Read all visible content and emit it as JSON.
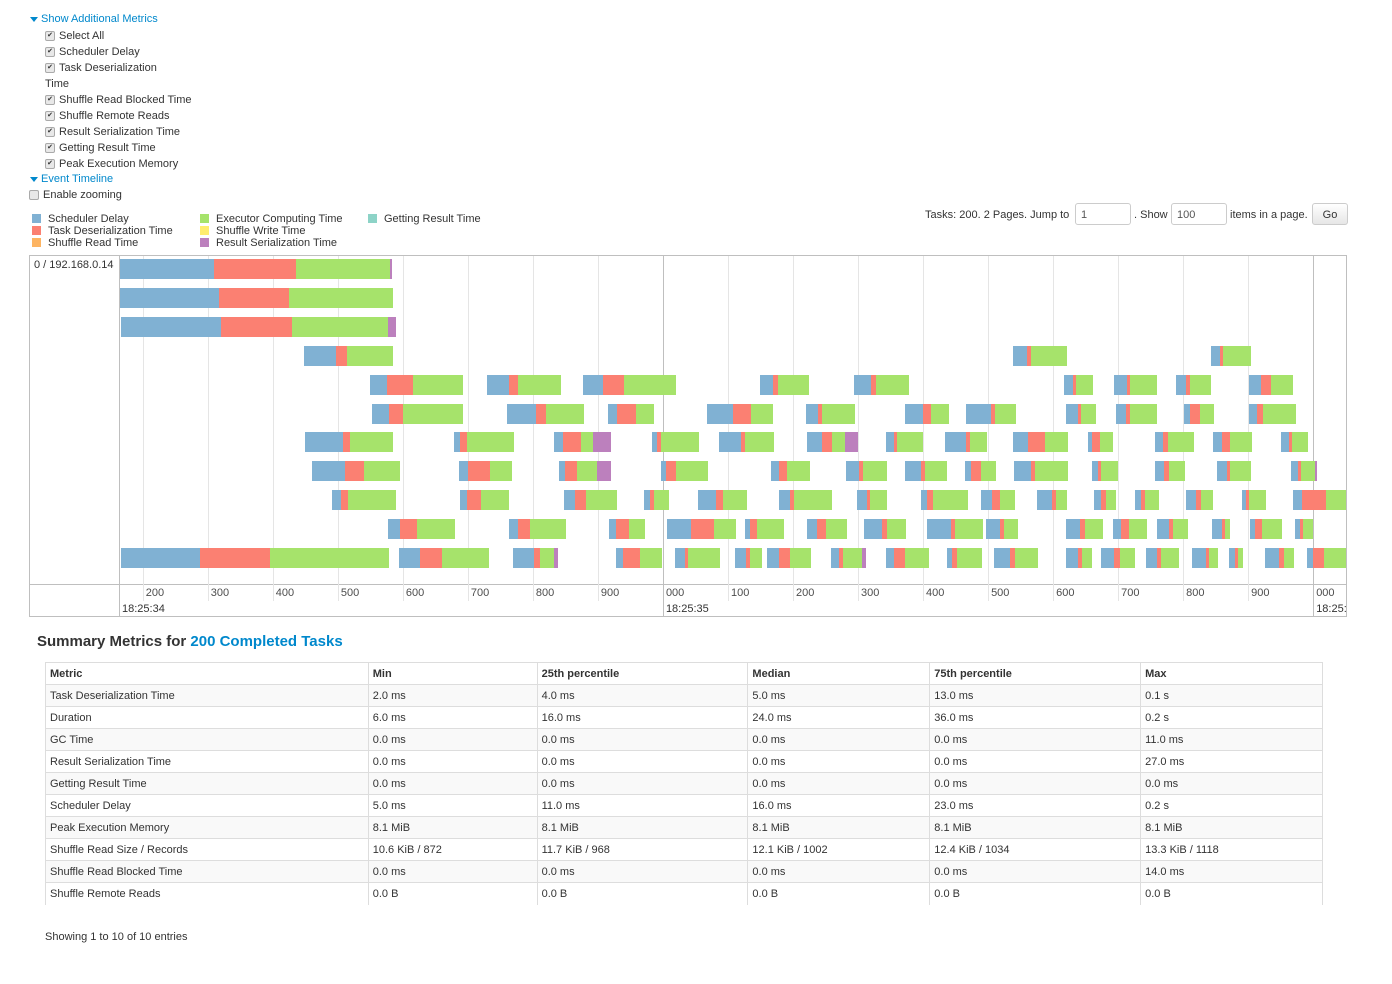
{
  "additional_metrics": {
    "toggle": "Show Additional Metrics",
    "items": [
      {
        "label": "Select All",
        "checked": true
      },
      {
        "label": "Scheduler Delay",
        "checked": true
      },
      {
        "label": "Task Deserialization Time",
        "checked": true
      },
      {
        "label": "Shuffle Read Blocked Time",
        "checked": true
      },
      {
        "label": "Shuffle Remote Reads",
        "checked": true
      },
      {
        "label": "Result Serialization Time",
        "checked": true
      },
      {
        "label": "Getting Result Time",
        "checked": true
      },
      {
        "label": "Peak Execution Memory",
        "checked": true
      }
    ]
  },
  "event_timeline": {
    "toggle": "Event Timeline",
    "zoom_label": "Enable zooming",
    "zoom_checked": false
  },
  "legend": [
    {
      "label": "Scheduler Delay",
      "color": "#80b1d3"
    },
    {
      "label": "Task Deserialization Time",
      "color": "#fb8072"
    },
    {
      "label": "Shuffle Read Time",
      "color": "#fdb462"
    },
    {
      "label": "Executor Computing Time",
      "color": "#a6e36b"
    },
    {
      "label": "Shuffle Write Time",
      "color": "#ffed6f"
    },
    {
      "label": "Result Serialization Time",
      "color": "#bc80bd"
    },
    {
      "label": "Getting Result Time",
      "color": "#8dd3c7"
    }
  ],
  "pagination": {
    "prefix": "Tasks: 200. 2 Pages. Jump to",
    "page": "1",
    "show": ". Show",
    "page_size": "100",
    "suffix": "items in a page.",
    "go": "Go"
  },
  "timeline": {
    "executor": "0 / 192.168.0.14",
    "range_ms": [
      165,
      2052
    ],
    "ticks": [
      {
        "ms": 200,
        "label": "200"
      },
      {
        "ms": 300,
        "label": "300"
      },
      {
        "ms": 400,
        "label": "400"
      },
      {
        "ms": 500,
        "label": "500"
      },
      {
        "ms": 600,
        "label": "600"
      },
      {
        "ms": 700,
        "label": "700"
      },
      {
        "ms": 800,
        "label": "800"
      },
      {
        "ms": 900,
        "label": "900"
      },
      {
        "ms": 1000,
        "label": "000",
        "major": "18:25:35"
      },
      {
        "ms": 1100,
        "label": "100"
      },
      {
        "ms": 1200,
        "label": "200"
      },
      {
        "ms": 1300,
        "label": "300"
      },
      {
        "ms": 1400,
        "label": "400"
      },
      {
        "ms": 1500,
        "label": "500"
      },
      {
        "ms": 1600,
        "label": "600"
      },
      {
        "ms": 1700,
        "label": "700"
      },
      {
        "ms": 1800,
        "label": "800"
      },
      {
        "ms": 1900,
        "label": "900"
      },
      {
        "ms": 2000,
        "label": "000",
        "major": "18:25:"
      }
    ],
    "start_label": "18:25:34",
    "segment_colors": [
      "#80b1d3",
      "#fb8072",
      "#a6e36b",
      "#bc80bd"
    ],
    "rows": [
      [
        [
          165,
          309,
          435,
          580,
          583
        ]
      ],
      [
        [
          165,
          317,
          425,
          585
        ]
      ],
      [
        [
          166,
          320,
          429,
          577,
          589
        ]
      ],
      [
        [
          448,
          497,
          514,
          585
        ],
        [
          1538,
          1560,
          1566,
          1622
        ],
        [
          1843,
          1857,
          1862,
          1905
        ]
      ],
      [
        [
          549,
          575,
          615,
          692
        ],
        [
          729,
          763,
          777,
          843
        ],
        [
          877,
          908,
          940,
          1020
        ],
        [
          1149,
          1169,
          1177,
          1225
        ],
        [
          1294,
          1320,
          1328,
          1378
        ],
        [
          1617,
          1631,
          1635,
          1662
        ],
        [
          1694,
          1714,
          1718,
          1760
        ],
        [
          1789,
          1805,
          1811,
          1843
        ],
        [
          1901,
          1920,
          1935,
          1969
        ]
      ],
      [
        [
          552,
          578,
          600,
          692
        ],
        [
          760,
          805,
          820,
          878
        ],
        [
          915,
          929,
          958,
          986
        ],
        [
          1068,
          1108,
          1135,
          1169
        ],
        [
          1220,
          1238,
          1245,
          1295
        ],
        [
          1372,
          1400,
          1412,
          1440
        ],
        [
          1466,
          1504,
          1510,
          1543
        ],
        [
          1620,
          1638,
          1643,
          1666
        ],
        [
          1697,
          1712,
          1718,
          1760
        ],
        [
          1801,
          1810,
          1826,
          1847
        ],
        [
          1901,
          1913,
          1923,
          1974
        ]
      ],
      [
        [
          449,
          508,
          518,
          585
        ],
        [
          678,
          688,
          698,
          771
        ],
        [
          832,
          846,
          874,
          892,
          920
        ],
        [
          983,
          991,
          997,
          1055
        ],
        [
          1086,
          1120,
          1126,
          1171
        ],
        [
          1222,
          1245,
          1260,
          1280,
          1300
        ],
        [
          1343,
          1355,
          1360,
          1400
        ],
        [
          1434,
          1466,
          1472,
          1498
        ],
        [
          1538,
          1562,
          1588,
          1623
        ],
        [
          1654,
          1660,
          1672,
          1692
        ],
        [
          1757,
          1769,
          1777,
          1817
        ],
        [
          1846,
          1860,
          1872,
          1906
        ],
        [
          1951,
          1963,
          1968,
          1992
        ]
      ],
      [
        [
          460,
          511,
          540,
          595
        ],
        [
          686,
          700,
          734,
          768
        ],
        [
          840,
          849,
          868,
          898,
          920
        ],
        [
          997,
          1005,
          1020,
          1069
        ],
        [
          1166,
          1178,
          1191,
          1226
        ],
        [
          1281,
          1301,
          1308,
          1345
        ],
        [
          1372,
          1397,
          1403,
          1437
        ],
        [
          1465,
          1474,
          1489,
          1512
        ],
        [
          1540,
          1566,
          1572,
          1623
        ],
        [
          1660,
          1669,
          1674,
          1700
        ],
        [
          1757,
          1771,
          1778,
          1803
        ],
        [
          1852,
          1868,
          1872,
          1905
        ],
        [
          1966,
          1977,
          1982,
          2003,
          2006
        ]
      ],
      [
        [
          491,
          505,
          515,
          589
        ],
        [
          688,
          698,
          720,
          763
        ],
        [
          848,
          865,
          882,
          929
        ],
        [
          971,
          980,
          986,
          1009
        ],
        [
          1054,
          1082,
          1092,
          1129
        ],
        [
          1178,
          1195,
          1202,
          1260
        ],
        [
          1298,
          1314,
          1318,
          1345
        ],
        [
          1397,
          1406,
          1415,
          1469
        ],
        [
          1489,
          1506,
          1518,
          1541
        ],
        [
          1575,
          1598,
          1604,
          1622
        ],
        [
          1663,
          1674,
          1682,
          1697
        ],
        [
          1726,
          1735,
          1741,
          1763
        ],
        [
          1805,
          1820,
          1828,
          1846
        ],
        [
          1891,
          1897,
          1901,
          1928
        ],
        [
          1969,
          1983,
          2020,
          2052
        ]
      ],
      [
        [
          577,
          595,
          622,
          680
        ],
        [
          763,
          777,
          795,
          851
        ],
        [
          917,
          928,
          948,
          972
        ],
        [
          1006,
          1043,
          1078,
          1112
        ],
        [
          1126,
          1134,
          1145,
          1186
        ],
        [
          1222,
          1237,
          1251,
          1283
        ],
        [
          1309,
          1337,
          1345,
          1374
        ],
        [
          1406,
          1443,
          1449,
          1492
        ],
        [
          1497,
          1518,
          1524,
          1546
        ],
        [
          1620,
          1641,
          1649,
          1677
        ],
        [
          1692,
          1705,
          1717,
          1745
        ],
        [
          1760,
          1778,
          1785,
          1808
        ],
        [
          1845,
          1860,
          1865,
          1872
        ],
        [
          1903,
          1911,
          1922,
          1952
        ],
        [
          1972,
          1980,
          1985,
          1999
        ]
      ],
      [
        [
          166,
          288,
          395,
          578
        ],
        [
          594,
          626,
          660,
          732
        ],
        [
          769,
          802,
          811,
          832,
          838
        ],
        [
          928,
          938,
          965,
          998
        ],
        [
          1018,
          1034,
          1038,
          1088
        ],
        [
          1111,
          1128,
          1134,
          1152
        ],
        [
          1160,
          1178,
          1195,
          1228
        ],
        [
          1258,
          1271,
          1277,
          1306,
          1312
        ],
        [
          1343,
          1355,
          1372,
          1409
        ],
        [
          1437,
          1445,
          1452,
          1491
        ],
        [
          1509,
          1534,
          1542,
          1577
        ],
        [
          1620,
          1638,
          1644,
          1660
        ],
        [
          1674,
          1694,
          1703,
          1726
        ],
        [
          1743,
          1760,
          1766,
          1794
        ],
        [
          1814,
          1835,
          1840,
          1854
        ],
        [
          1871,
          1880,
          1885,
          1892
        ],
        [
          1926,
          1948,
          1955,
          1971
        ],
        [
          1991,
          2000,
          2017,
          2052
        ]
      ]
    ]
  },
  "summary": {
    "title_prefix": "Summary Metrics for",
    "title_link": "200 Completed Tasks",
    "columns": [
      "Metric",
      "Min",
      "25th percentile",
      "Median",
      "75th percentile",
      "Max"
    ],
    "rows": [
      [
        "Task Deserialization Time",
        "2.0 ms",
        "4.0 ms",
        "5.0 ms",
        "13.0 ms",
        "0.1 s"
      ],
      [
        "Duration",
        "6.0 ms",
        "16.0 ms",
        "24.0 ms",
        "36.0 ms",
        "0.2 s"
      ],
      [
        "GC Time",
        "0.0 ms",
        "0.0 ms",
        "0.0 ms",
        "0.0 ms",
        "11.0 ms"
      ],
      [
        "Result Serialization Time",
        "0.0 ms",
        "0.0 ms",
        "0.0 ms",
        "0.0 ms",
        "27.0 ms"
      ],
      [
        "Getting Result Time",
        "0.0 ms",
        "0.0 ms",
        "0.0 ms",
        "0.0 ms",
        "0.0 ms"
      ],
      [
        "Scheduler Delay",
        "5.0 ms",
        "11.0 ms",
        "16.0 ms",
        "23.0 ms",
        "0.2 s"
      ],
      [
        "Peak Execution Memory",
        "8.1 MiB",
        "8.1 MiB",
        "8.1 MiB",
        "8.1 MiB",
        "8.1 MiB"
      ],
      [
        "Shuffle Read Size / Records",
        "10.6 KiB / 872",
        "11.7 KiB / 968",
        "12.1 KiB / 1002",
        "12.4 KiB / 1034",
        "13.3 KiB / 1118"
      ],
      [
        "Shuffle Read Blocked Time",
        "0.0 ms",
        "0.0 ms",
        "0.0 ms",
        "0.0 ms",
        "14.0 ms"
      ],
      [
        "Shuffle Remote Reads",
        "0.0 B",
        "0.0 B",
        "0.0 B",
        "0.0 B",
        "0.0 B"
      ]
    ],
    "footer": "Showing 1 to 10 of 10 entries"
  }
}
